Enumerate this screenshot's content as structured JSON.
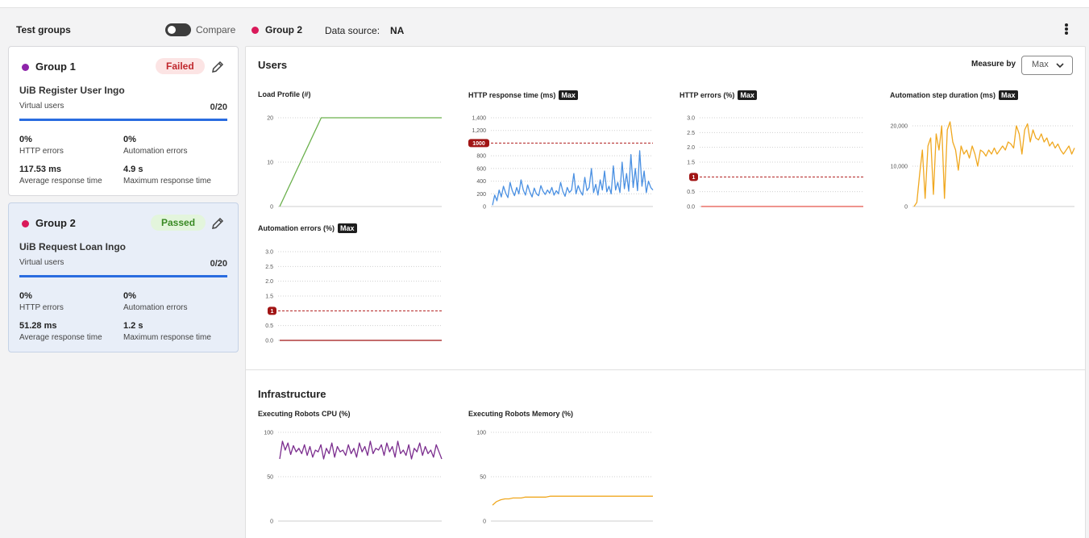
{
  "header": {
    "title": "Test groups",
    "compare_label": "Compare",
    "selected_group": "Group 2",
    "data_source_label": "Data source:",
    "data_source_value": "NA"
  },
  "groups": [
    {
      "name": "Group 1",
      "color": "#8e24aa",
      "status": "Failed",
      "test_name": "UiB Register User Ingo",
      "virtual_users_label": "Virtual users",
      "virtual_users_count": "0/20",
      "http_errors": "0%",
      "http_errors_label": "HTTP errors",
      "automation_errors": "0%",
      "automation_errors_label": "Automation errors",
      "avg_response": "117.53 ms",
      "avg_response_label": "Average response time",
      "max_response": "4.9 s",
      "max_response_label": "Maximum response time"
    },
    {
      "name": "Group 2",
      "color": "#d9195a",
      "status": "Passed",
      "test_name": "UiB Request Loan Ingo",
      "virtual_users_label": "Virtual users",
      "virtual_users_count": "0/20",
      "http_errors": "0%",
      "http_errors_label": "HTTP errors",
      "automation_errors": "0%",
      "automation_errors_label": "Automation errors",
      "avg_response": "51.28 ms",
      "avg_response_label": "Average response time",
      "max_response": "1.2 s",
      "max_response_label": "Maximum response time"
    }
  ],
  "users_section": {
    "title": "Users",
    "measure_by_label": "Measure by",
    "measure_by_value": "Max"
  },
  "infrastructure_section": {
    "title": "Infrastructure"
  },
  "colors": {
    "accent": "#2a6ce0",
    "green": "#6ab04c",
    "blue": "#4a90e2",
    "amber": "#f5a623",
    "purple": "#7b2d8e",
    "threshold": "#b01c1c"
  },
  "chart_data": [
    {
      "id": "load_profile",
      "type": "line",
      "title": "Load Profile (#)",
      "max_badge": "",
      "yticks": [
        "20",
        "10",
        "0"
      ],
      "ylim": [
        0,
        20
      ],
      "color": "#6ab04c",
      "values": [
        0,
        2,
        4,
        6,
        8,
        10,
        12,
        14,
        16,
        18,
        20,
        20,
        20,
        20,
        20,
        20,
        20,
        20,
        20,
        20,
        20,
        20,
        20,
        20,
        20,
        20,
        20,
        20,
        20,
        20,
        20,
        20,
        20,
        20,
        20,
        20,
        20,
        20,
        20,
        20
      ]
    },
    {
      "id": "http_response_time",
      "type": "line",
      "title": "HTTP response time (ms)",
      "max_badge": "Max",
      "yticks": [
        "1,400",
        "1,200",
        "1000",
        "800",
        "600",
        "400",
        "200",
        "0"
      ],
      "ylim": [
        0,
        1400
      ],
      "threshold": 1000,
      "threshold_label": "1000",
      "color": "#4a90e2",
      "values": [
        20,
        180,
        90,
        260,
        150,
        320,
        210,
        140,
        380,
        250,
        170,
        300,
        200,
        420,
        260,
        180,
        340,
        230,
        150,
        290,
        200,
        170,
        330,
        240,
        190,
        260,
        210,
        300,
        180,
        250,
        200,
        380,
        240,
        160,
        300,
        220,
        260,
        520,
        200,
        330,
        240,
        180,
        460,
        250,
        300,
        600,
        220,
        350,
        180,
        420,
        260,
        560,
        230,
        320,
        200,
        640,
        260,
        380,
        220,
        700,
        280,
        520,
        240,
        820,
        300,
        600,
        250,
        880,
        320,
        560,
        220,
        400,
        300,
        260
      ]
    },
    {
      "id": "http_errors",
      "type": "line",
      "title": "HTTP errors (%)",
      "max_badge": "Max",
      "yticks": [
        "3.0",
        "2.5",
        "2.0",
        "1.5",
        "1",
        "0.5",
        "0.0"
      ],
      "ylim": [
        0,
        3
      ],
      "threshold": 1,
      "threshold_label": "1",
      "color": "#e5534b",
      "values": [
        0,
        0,
        0,
        0,
        0,
        0,
        0,
        0,
        0,
        0
      ]
    },
    {
      "id": "automation_step_duration",
      "type": "line",
      "title": "Automation step duration (ms)",
      "max_badge": "Max",
      "yticks": [
        "20,000",
        "10,000",
        "0"
      ],
      "ylim": [
        0,
        22000
      ],
      "color": "#f0a820",
      "values": [
        0,
        1000,
        8000,
        14000,
        2000,
        15000,
        17000,
        3000,
        18000,
        14000,
        20000,
        2000,
        19000,
        21000,
        16000,
        14000,
        9000,
        15000,
        13000,
        14000,
        12000,
        15000,
        13000,
        10000,
        14000,
        13500,
        12500,
        14000,
        13000,
        14500,
        13000,
        14000,
        15000,
        14000,
        16000,
        15500,
        14500,
        20000,
        18000,
        13000,
        19000,
        20500,
        16000,
        19000,
        17000,
        16500,
        18000,
        16000,
        17000,
        15000,
        16000,
        14500,
        15500,
        14000,
        13000,
        14000,
        15000,
        13000,
        14500
      ]
    },
    {
      "id": "automation_errors",
      "type": "line",
      "title": "Automation errors (%)",
      "max_badge": "Max",
      "yticks": [
        "3.0",
        "2.5",
        "2.0",
        "1.5",
        "1",
        "0.5",
        "0.0"
      ],
      "ylim": [
        0,
        3
      ],
      "threshold": 1,
      "threshold_label": "1",
      "color": "#a11515",
      "values": [
        0,
        0,
        0,
        0,
        0,
        0,
        0,
        0,
        0,
        0
      ]
    },
    {
      "id": "robots_cpu",
      "type": "line",
      "title": "Executing Robots CPU (%)",
      "max_badge": "",
      "yticks": [
        "100",
        "50",
        "0"
      ],
      "ylim": [
        0,
        100
      ],
      "color": "#7b2d8e",
      "values": [
        70,
        90,
        80,
        88,
        75,
        85,
        78,
        82,
        76,
        86,
        74,
        84,
        72,
        80,
        78,
        86,
        70,
        82,
        76,
        88,
        72,
        84,
        78,
        80,
        74,
        86,
        76,
        82,
        72,
        88,
        78,
        84,
        74,
        90,
        76,
        82,
        80,
        86,
        74,
        88,
        78,
        84,
        72,
        90,
        76,
        80,
        74,
        86,
        70,
        82,
        78,
        88,
        74,
        84,
        76,
        80,
        72,
        86,
        78,
        70
      ]
    },
    {
      "id": "robots_memory",
      "type": "line",
      "title": "Executing Robots Memory (%)",
      "max_badge": "",
      "yticks": [
        "100",
        "50",
        "0"
      ],
      "ylim": [
        0,
        100
      ],
      "color": "#f0a820",
      "values": [
        18,
        22,
        24,
        25,
        25,
        26,
        26,
        26,
        27,
        27,
        27,
        27,
        27,
        27,
        28,
        28,
        28,
        28,
        28,
        28,
        28,
        28,
        28,
        28,
        28,
        28,
        28,
        28,
        28,
        28,
        28,
        28,
        28,
        28,
        28,
        28,
        28,
        28,
        28,
        28
      ]
    }
  ]
}
